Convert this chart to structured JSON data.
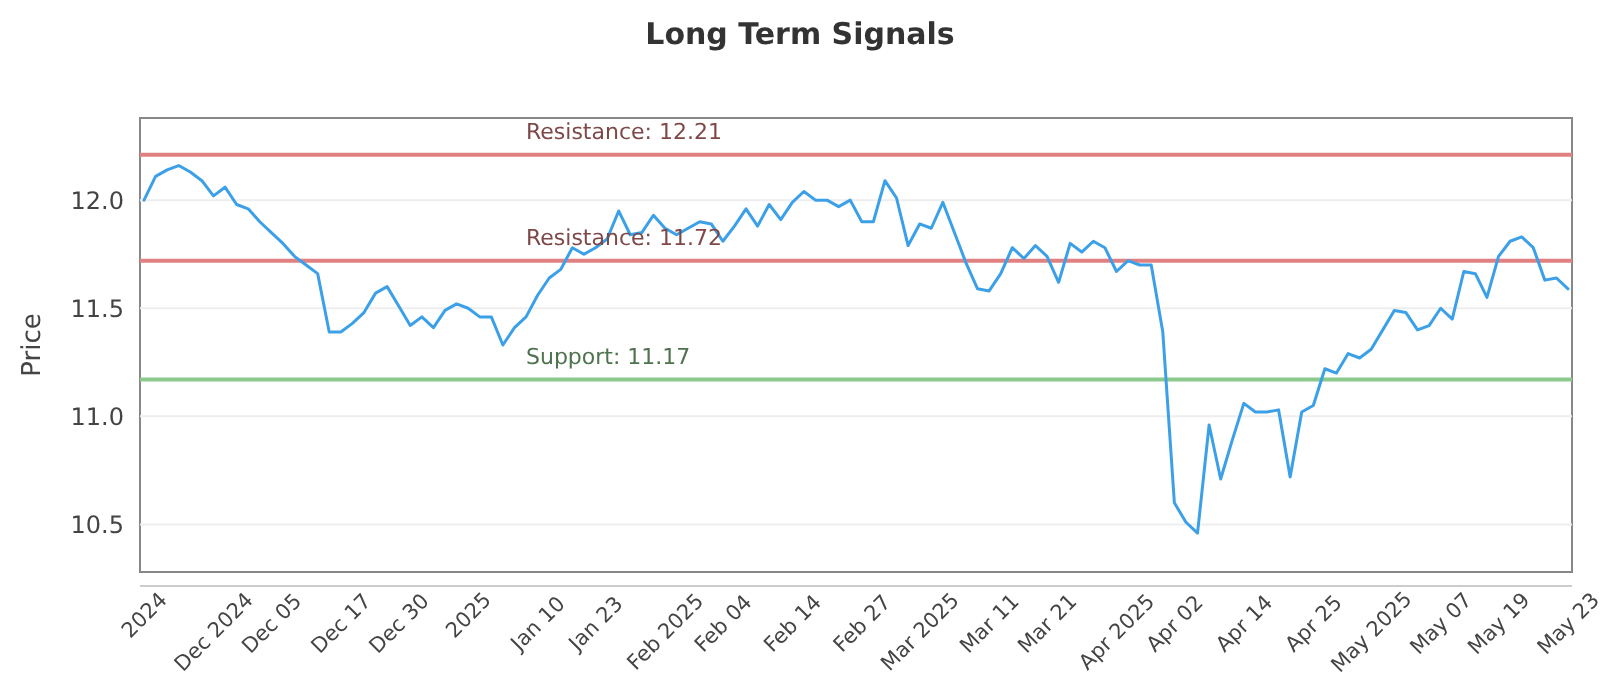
{
  "chart_data": {
    "type": "line",
    "title": "Long Term Signals",
    "ylabel": "Price",
    "categories": [
      "2024",
      null,
      null,
      null,
      null,
      null,
      "Dec 2024",
      null,
      null,
      null,
      null,
      "Dec 05",
      null,
      null,
      null,
      null,
      null,
      "Dec 17",
      null,
      null,
      null,
      null,
      "Dec 30",
      null,
      null,
      null,
      null,
      null,
      "2025",
      null,
      null,
      null,
      null,
      null,
      "Jan 10",
      null,
      null,
      null,
      null,
      "Jan 23",
      null,
      null,
      null,
      null,
      null,
      "Feb 2025",
      null,
      null,
      null,
      null,
      "Feb 04",
      null,
      null,
      null,
      null,
      null,
      "Feb 14",
      null,
      null,
      null,
      null,
      null,
      "Feb 27",
      null,
      null,
      null,
      null,
      "Mar 2025",
      null,
      null,
      null,
      null,
      null,
      "Mar 11",
      null,
      null,
      null,
      null,
      "Mar 21",
      null,
      null,
      null,
      null,
      null,
      "Apr 2025",
      null,
      null,
      null,
      null,
      "Apr 02",
      null,
      null,
      null,
      null,
      null,
      "Apr 14",
      null,
      null,
      null,
      null,
      null,
      "Apr 25",
      null,
      null,
      null,
      null,
      "May 2025",
      null,
      null,
      null,
      null,
      null,
      "May 07",
      null,
      null,
      null,
      null,
      "May 19",
      null,
      null,
      null,
      null,
      null,
      "May 23"
    ],
    "series": [
      {
        "color": "#3ca0e8",
        "values": [
          12.0,
          12.11,
          12.14,
          12.16,
          12.13,
          12.09,
          12.02,
          12.06,
          11.98,
          11.96,
          11.9,
          11.85,
          11.8,
          11.74,
          11.7,
          11.66,
          11.39,
          11.39,
          11.43,
          11.48,
          11.57,
          11.6,
          11.51,
          11.42,
          11.46,
          11.41,
          11.49,
          11.52,
          11.5,
          11.46,
          11.46,
          11.33,
          11.41,
          11.46,
          11.56,
          11.64,
          11.68,
          11.78,
          11.75,
          11.78,
          11.82,
          11.95,
          11.84,
          11.85,
          11.93,
          11.87,
          11.84,
          11.87,
          11.9,
          11.89,
          11.81,
          11.88,
          11.96,
          11.88,
          11.98,
          11.91,
          11.99,
          12.04,
          12.0,
          12.0,
          11.97,
          12.0,
          11.9,
          11.9,
          12.09,
          12.01,
          11.79,
          11.89,
          11.87,
          11.99,
          11.85,
          11.71,
          11.59,
          11.58,
          11.66,
          11.78,
          11.73,
          11.79,
          11.74,
          11.62,
          11.8,
          11.76,
          11.81,
          11.78,
          11.67,
          11.72,
          11.7,
          11.7,
          11.39,
          10.6,
          10.51,
          10.46,
          10.96,
          10.71,
          10.89,
          11.06,
          11.02,
          11.02,
          11.03,
          10.72,
          11.02,
          11.05,
          11.22,
          11.2,
          11.29,
          11.27,
          11.31,
          11.4,
          11.49,
          11.48,
          11.4,
          11.42,
          11.5,
          11.45,
          11.67,
          11.66,
          11.55,
          11.74,
          11.81,
          11.83,
          11.78,
          11.63,
          11.64,
          11.59
        ]
      }
    ],
    "ylim": [
      10.28,
      12.38
    ],
    "yticks": [
      10.5,
      {
        "value": 11,
        "label": "11.0"
      },
      11.5,
      {
        "value": 12,
        "label": "12.0"
      }
    ],
    "ref_lines": [
      {
        "axis": "y",
        "value": 12.21,
        "label": "Resistance: 12.21",
        "color": "#e08080"
      },
      {
        "axis": "y",
        "value": 11.72,
        "label": "Resistance: 11.72",
        "color": "#e08080"
      },
      {
        "axis": "y",
        "value": 11.17,
        "label": "Support: 11.17",
        "color": "#8cc98c"
      }
    ],
    "grid": "y",
    "marker": "none",
    "line_style": "solid"
  }
}
